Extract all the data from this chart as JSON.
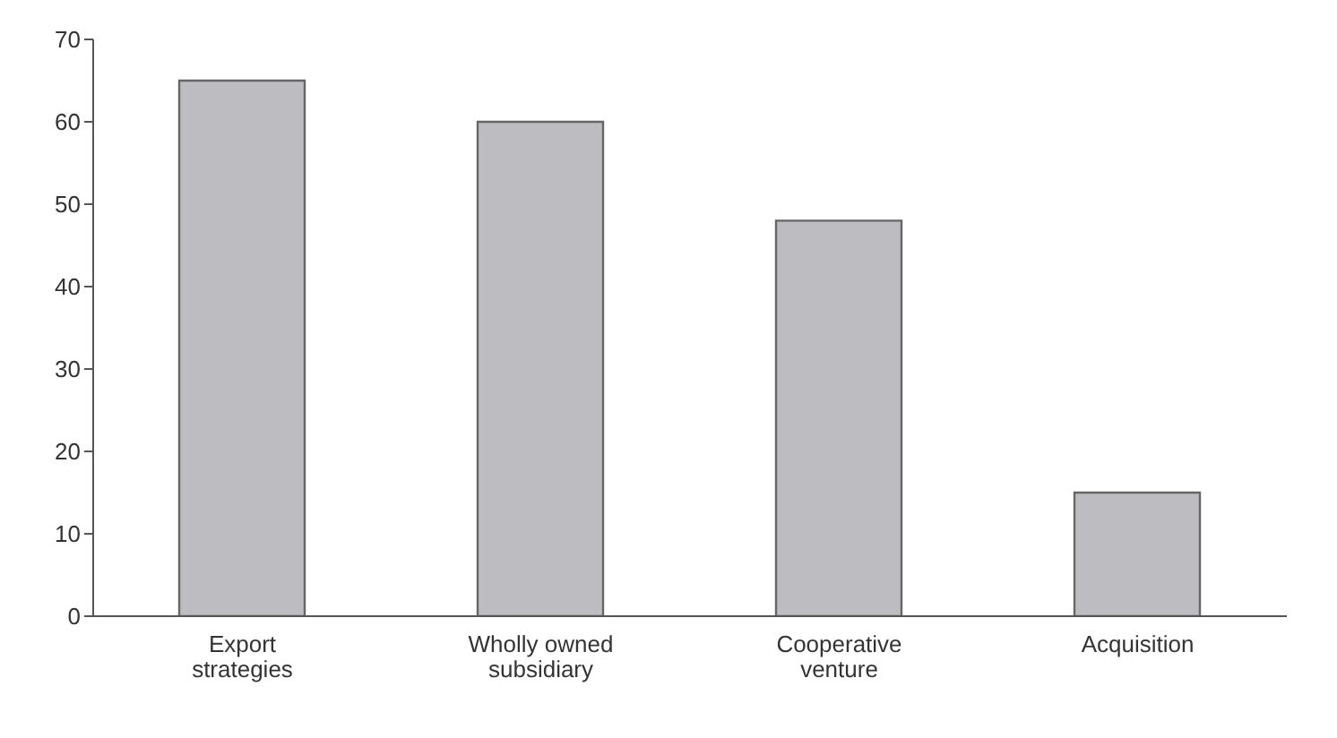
{
  "chart_data": {
    "type": "bar",
    "categories": [
      "Export\nstrategies",
      "Wholly owned\nsubsidiary",
      "Cooperative\nventure",
      "Acquisition"
    ],
    "values": [
      65,
      60,
      48,
      15
    ],
    "color": "#bdbdc1",
    "ylim": [
      0,
      70
    ],
    "yticks": [
      0,
      10,
      20,
      30,
      40,
      50,
      60,
      70
    ],
    "grid": false
  }
}
